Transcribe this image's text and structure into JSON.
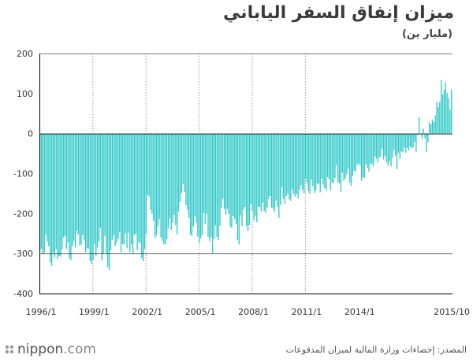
{
  "title": "ميزان إنفاق السفر الياباني",
  "subtitle": "(مليار ين)",
  "brand": {
    "name": "nippon",
    "suffix": ".com"
  },
  "source": "المصدر: إحصاءات وزارة المالية لميزان المدفوعات",
  "colors": {
    "bar": "#2ec8c8",
    "axis": "#000000",
    "grid": "#999999"
  },
  "chart_data": {
    "type": "bar",
    "title": "ميزان إنفاق السفر الياباني",
    "ylabel": "(مليار ين)",
    "xlabel": "",
    "ylim": [
      -400,
      200
    ],
    "yticks": [
      200,
      100,
      0,
      -100,
      -200,
      -300,
      -400
    ],
    "start": "1996/1",
    "end": "2015/10",
    "xtick_labels": [
      "1996/1",
      "1999/1",
      "2002/1",
      "2005/1",
      "2008/1",
      "2011/1",
      "2014/1",
      "2015/10"
    ],
    "grid_x": [
      "1999/1",
      "2002/1",
      "2005/1",
      "2008/1",
      "2011/1"
    ],
    "grid_y": [
      200,
      -300
    ],
    "values": [
      -295,
      -288,
      -301,
      -298,
      -253,
      -270,
      -282,
      -322,
      -331,
      -297,
      -310,
      -289,
      -313,
      -306,
      -308,
      -290,
      -260,
      -256,
      -288,
      -272,
      -312,
      -316,
      -282,
      -270,
      -285,
      -243,
      -252,
      -280,
      -277,
      -254,
      -267,
      -297,
      -287,
      -288,
      -319,
      -326,
      -316,
      -276,
      -305,
      -285,
      -269,
      -237,
      -316,
      -300,
      -256,
      -300,
      -334,
      -341,
      -292,
      -266,
      -255,
      -282,
      -273,
      -264,
      -246,
      -297,
      -276,
      -278,
      -250,
      -287,
      -248,
      -297,
      -277,
      -301,
      -253,
      -251,
      -292,
      -272,
      -274,
      -312,
      -319,
      -289,
      -251,
      -154,
      -157,
      -191,
      -201,
      -218,
      -261,
      -255,
      -232,
      -214,
      -260,
      -268,
      -277,
      -276,
      -264,
      -237,
      -212,
      -241,
      -223,
      -203,
      -229,
      -253,
      -195,
      -171,
      -149,
      -127,
      -146,
      -179,
      -191,
      -211,
      -253,
      -256,
      -232,
      -206,
      -223,
      -258,
      -273,
      -262,
      -254,
      -199,
      -226,
      -201,
      -258,
      -269,
      -259,
      -299,
      -264,
      -230,
      -258,
      -266,
      -231,
      -185,
      -163,
      -188,
      -203,
      -189,
      -201,
      -233,
      -236,
      -206,
      -214,
      -227,
      -267,
      -277,
      -205,
      -232,
      -190,
      -184,
      -231,
      -244,
      -229,
      -176,
      -193,
      -218,
      -206,
      -221,
      -183,
      -184,
      -195,
      -173,
      -193,
      -198,
      -185,
      -163,
      -156,
      -185,
      -188,
      -196,
      -168,
      -184,
      -211,
      -179,
      -135,
      -163,
      -176,
      -156,
      -151,
      -165,
      -168,
      -140,
      -151,
      -158,
      -152,
      -162,
      -141,
      -129,
      -141,
      -150,
      -114,
      -124,
      -144,
      -150,
      -115,
      -132,
      -149,
      -143,
      -125,
      -126,
      -147,
      -113,
      -128,
      -137,
      -143,
      -109,
      -114,
      -142,
      -123,
      -124,
      -111,
      -79,
      -122,
      -124,
      -146,
      -98,
      -118,
      -112,
      -101,
      -88,
      -123,
      -131,
      -106,
      -93,
      -95,
      -79,
      -75,
      -80,
      -118,
      -109,
      -111,
      -77,
      -86,
      -95,
      -76,
      -76,
      -81,
      -57,
      -63,
      -72,
      -61,
      -57,
      -39,
      -65,
      -56,
      -73,
      -80,
      -70,
      -82,
      -61,
      -41,
      -55,
      -89,
      -48,
      -63,
      -45,
      -47,
      -35,
      -48,
      -36,
      -42,
      -32,
      -37,
      -35,
      -21,
      -45,
      -4,
      41,
      -2,
      -13,
      12,
      -12,
      -46,
      -22,
      28,
      23,
      35,
      29,
      45,
      79,
      66,
      79,
      134,
      98,
      109,
      128,
      101,
      89,
      60,
      109
    ]
  }
}
